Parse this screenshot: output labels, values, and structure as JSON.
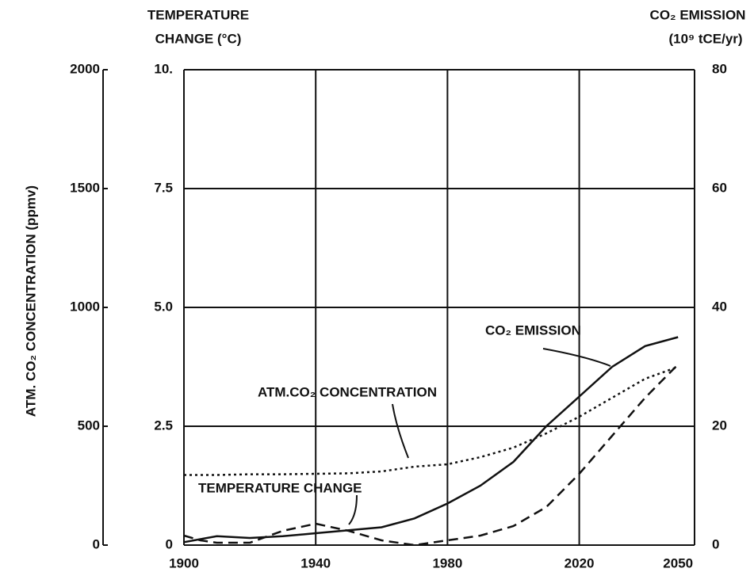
{
  "chart_data": {
    "type": "line",
    "y_label_lines": [
      "TEMPERATURE",
      "CHANGE (°C)"
    ],
    "y2_label_lines": [
      "CO₂ EMISSION",
      "(10⁹ tCE/yr)"
    ],
    "y3_label": "ATM. CO₂ CONCENTRATION (ppmv)",
    "xlim": [
      1900,
      2055
    ],
    "xticks": [
      1900,
      1940,
      1980,
      2020,
      2050
    ],
    "ylim": [
      0,
      10
    ],
    "yticks": [
      {
        "value": 0,
        "label": "0"
      },
      {
        "value": 2.5,
        "label": "2.5"
      },
      {
        "value": 5,
        "label": "5.0"
      },
      {
        "value": 7.5,
        "label": "7.5"
      },
      {
        "value": 10,
        "label": "10."
      }
    ],
    "y2lim": [
      0,
      80
    ],
    "y2ticks": [
      0,
      20,
      40,
      60,
      80
    ],
    "y3lim": [
      0,
      2000
    ],
    "y3ticks": [
      0,
      500,
      1000,
      1500,
      2000
    ],
    "grid": true,
    "x": [
      1900,
      1905,
      1910,
      1920,
      1930,
      1940,
      1950,
      1960,
      1970,
      1980,
      1990,
      2000,
      2010,
      2020,
      2030,
      2040,
      2050
    ],
    "series": [
      {
        "name": "TEMPERATURE CHANGE",
        "color": "#111",
        "dash": "dashed",
        "axis": "y",
        "values": [
          0.2,
          0.1,
          0.05,
          0.05,
          0.3,
          0.45,
          0.3,
          0.1,
          0.0,
          0.1,
          0.2,
          0.4,
          0.8,
          1.5,
          2.3,
          3.1,
          3.8
        ]
      },
      {
        "name": "ATM.CO₂ CONCENTRATION",
        "color": "#111",
        "dash": "dotted",
        "axis": "y3",
        "values": [
          295,
          295,
          295,
          298,
          298,
          300,
          302,
          310,
          330,
          340,
          370,
          410,
          470,
          540,
          620,
          700,
          750
        ]
      },
      {
        "name": "CO₂ EMISSION",
        "color": "#111",
        "dash": "solid",
        "axis": "y2",
        "values": [
          0.5,
          1,
          1.5,
          1.2,
          1.5,
          2,
          2.5,
          3,
          4.5,
          7,
          10,
          14,
          20,
          25,
          30,
          33.5,
          35
        ]
      }
    ]
  }
}
